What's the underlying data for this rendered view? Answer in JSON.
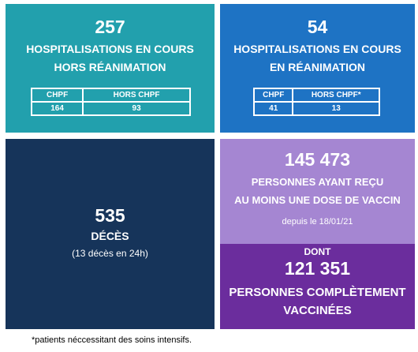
{
  "hosp": {
    "count": "257",
    "label_line1": "HOSPITALISATIONS EN COURS",
    "label_line2": "HORS RÉANIMATION",
    "table": {
      "headers": [
        "CHPF",
        "HORS CHPF"
      ],
      "values": [
        "164",
        "93"
      ]
    },
    "color": "#22a0ad"
  },
  "rea": {
    "count": "54",
    "label_line1": "HOSPITALISATIONS EN COURS",
    "label_line2": "EN RÉANIMATION",
    "table": {
      "headers": [
        "CHPF",
        "HORS CHPF*"
      ],
      "values": [
        "41",
        "13"
      ]
    },
    "color": "#1e73c4"
  },
  "deces": {
    "count": "535",
    "label": "DÉCÈS",
    "note": "(13 décès en 24h)",
    "color": "#16345a"
  },
  "vax_dose": {
    "count": "145 473",
    "label_line1": "PERSONNES AYANT REÇU",
    "label_line2": "AU MOINS UNE DOSE DE VACCIN",
    "since": "depuis le 18/01/21",
    "color": "#a586d2"
  },
  "vax_full": {
    "prefix": "DONT",
    "count": "121 351",
    "label_line1": "PERSONNES COMPLÈTEMENT",
    "label_line2": "VACCINÉES",
    "color": "#6b2d9d"
  },
  "footnote": "*patients néccessitant des soins intensifs."
}
